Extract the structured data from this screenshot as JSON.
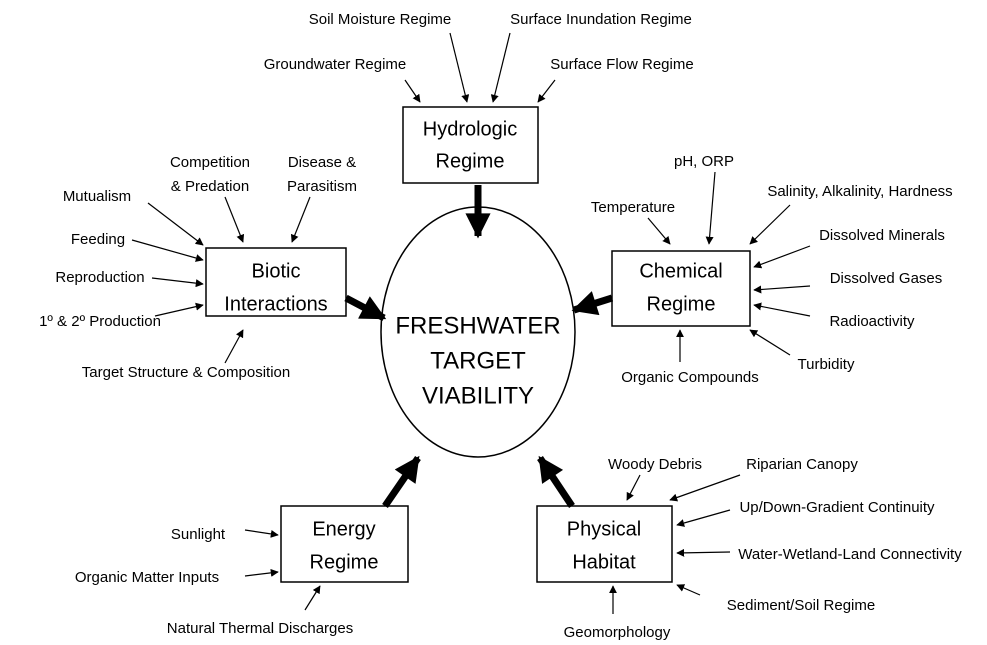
{
  "center": {
    "lines": [
      "FRESHWATER",
      "TARGET",
      "VIABILITY"
    ]
  },
  "nodes": [
    {
      "lines": [
        "Hydrologic",
        "Regime"
      ],
      "factors": [
        "Groundwater Regime",
        "Soil Moisture Regime",
        "Surface Inundation Regime",
        "Surface Flow Regime"
      ]
    },
    {
      "lines": [
        "Biotic",
        "Interactions"
      ],
      "factors": [
        "Mutualism",
        [
          "Competition",
          "& Predation"
        ],
        [
          "Disease &",
          "Parasitism"
        ],
        "Feeding",
        "Reproduction",
        "1º & 2º Production",
        "Target Structure & Composition"
      ]
    },
    {
      "lines": [
        "Chemical",
        "Regime"
      ],
      "factors": [
        "pH, ORP",
        "Temperature",
        "Salinity, Alkalinity, Hardness",
        "Dissolved Minerals",
        "Dissolved Gases",
        "Radioactivity",
        "Turbidity",
        "Organic Compounds"
      ]
    },
    {
      "lines": [
        "Energy",
        "Regime"
      ],
      "factors": [
        "Sunlight",
        "Organic Matter Inputs",
        "Natural Thermal Discharges"
      ]
    },
    {
      "lines": [
        "Physical",
        "Habitat"
      ],
      "factors": [
        "Woody Debris",
        "Riparian Canopy",
        "Up/Down-Gradient Continuity",
        "Water-Wetland-Land Connectivity",
        "Sediment/Soil Regime",
        "Geomorphology"
      ]
    }
  ]
}
